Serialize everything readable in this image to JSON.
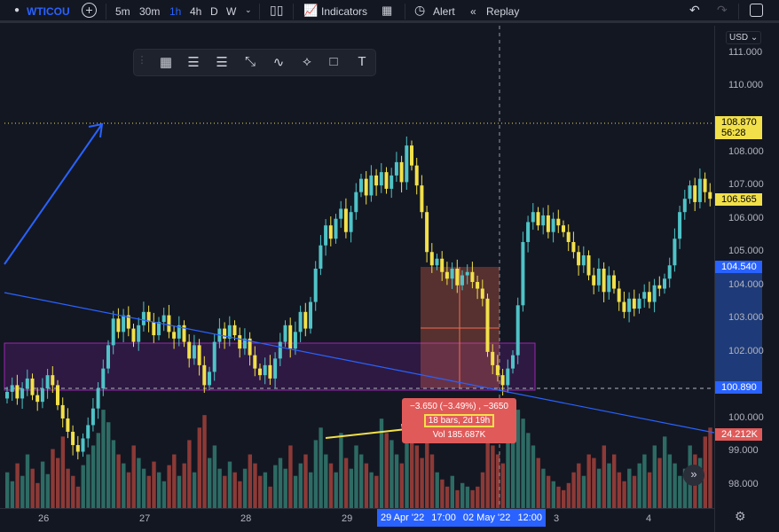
{
  "toolbar": {
    "symbol": "WTICOU",
    "intervals": [
      "5m",
      "30m",
      "1h",
      "4h",
      "D",
      "W"
    ],
    "active_interval": "1h",
    "indicators": "Indicators",
    "alert": "Alert",
    "replay": "Replay"
  },
  "price_axis": {
    "currency": "USD",
    "labels": [
      "111.000",
      "110.000",
      "108.000",
      "107.000",
      "106.000",
      "105.000",
      "104.000",
      "103.000",
      "102.000",
      "100.000",
      "99.000",
      "98.000"
    ],
    "last_price": "108.870",
    "countdown": "56:28",
    "current": "106.565",
    "range_high": "104.540",
    "range_low": "100.890",
    "volume": "24.212K"
  },
  "time_axis": {
    "labels": [
      "26",
      "27",
      "28",
      "29",
      "3",
      "4"
    ],
    "highlight": [
      "29 Apr '22",
      "17:00",
      "02 May '22",
      "12:00"
    ]
  },
  "measure": {
    "change": "−3.650 (−3.49%) , −3650",
    "bars": "18 bars, 2d 19h",
    "volume": "Vol 185.687K"
  },
  "colors": {
    "up": "#4fc3c7",
    "down": "#f2e04a",
    "vol_up": "#2d6b64",
    "vol_down": "#8c3a37",
    "accent": "#2962ff"
  },
  "chart_data": {
    "type": "candlestick",
    "ylim": [
      97.6,
      111.8
    ],
    "closes": [
      100.8,
      101.0,
      100.6,
      100.9,
      101.2,
      100.7,
      100.5,
      100.9,
      101.3,
      101.0,
      100.4,
      100.0,
      99.6,
      99.2,
      99.0,
      99.4,
      99.8,
      100.3,
      100.9,
      101.5,
      102.2,
      103.0,
      102.6,
      103.1,
      102.7,
      102.3,
      102.8,
      103.2,
      102.9,
      102.5,
      102.9,
      103.1,
      102.6,
      102.4,
      102.8,
      102.3,
      101.8,
      102.2,
      101.6,
      101.0,
      101.4,
      102.3,
      102.7,
      102.4,
      102.8,
      102.5,
      102.1,
      102.4,
      101.9,
      101.5,
      101.3,
      101.6,
      101.2,
      101.8,
      102.3,
      102.8,
      102.1,
      102.6,
      103.2,
      102.7,
      103.5,
      104.5,
      105.2,
      105.8,
      105.4,
      106.0,
      106.3,
      105.6,
      106.2,
      106.8,
      107.2,
      106.7,
      107.3,
      107.0,
      107.4,
      106.9,
      107.3,
      107.7,
      107.1,
      108.2,
      107.6,
      107.0,
      106.2,
      105.0,
      104.6,
      104.8,
      104.4,
      104.2,
      104.5,
      104.0,
      104.3,
      104.4,
      104.1,
      103.9,
      103.6,
      102.0,
      101.6,
      101.3,
      101.0,
      101.5,
      101.9,
      103.4,
      105.3,
      105.9,
      106.2,
      105.8,
      106.1,
      105.6,
      106.0,
      105.8,
      105.6,
      105.3,
      105.0,
      104.6,
      104.9,
      104.3,
      104.0,
      104.5,
      103.8,
      104.3,
      103.9,
      103.5,
      103.2,
      103.6,
      103.3,
      103.6,
      103.8,
      103.5,
      104.0,
      103.9,
      104.2,
      104.6,
      105.4,
      106.2,
      106.6,
      107.0,
      106.5,
      107.2,
      106.8,
      106.6
    ],
    "volumes_k": [
      20,
      15,
      25,
      18,
      30,
      22,
      14,
      26,
      19,
      33,
      28,
      40,
      22,
      18,
      12,
      24,
      30,
      35,
      42,
      55,
      48,
      38,
      30,
      25,
      20,
      35,
      28,
      22,
      18,
      26,
      20,
      15,
      24,
      30,
      18,
      25,
      38,
      20,
      45,
      52,
      28,
      35,
      22,
      18,
      26,
      20,
      15,
      22,
      30,
      25,
      18,
      20,
      12,
      24,
      28,
      22,
      35,
      18,
      25,
      30,
      20,
      38,
      45,
      30,
      25,
      20,
      42,
      28,
      22,
      35,
      30,
      25,
      20,
      18,
      50,
      42,
      38,
      30,
      25,
      55,
      40,
      35,
      28,
      45,
      30,
      20,
      16,
      12,
      18,
      10,
      14,
      12,
      10,
      12,
      20,
      40,
      35,
      30,
      25,
      48,
      60,
      55,
      50,
      42,
      35,
      28,
      22,
      18,
      15,
      12,
      10,
      14,
      20,
      25,
      18,
      30,
      28,
      22,
      35,
      25,
      30,
      20,
      15,
      22,
      18,
      25,
      30,
      20,
      35,
      28,
      40,
      30,
      25,
      18,
      22,
      35,
      30,
      28,
      40,
      45
    ],
    "ymax_volume_k": 62
  }
}
